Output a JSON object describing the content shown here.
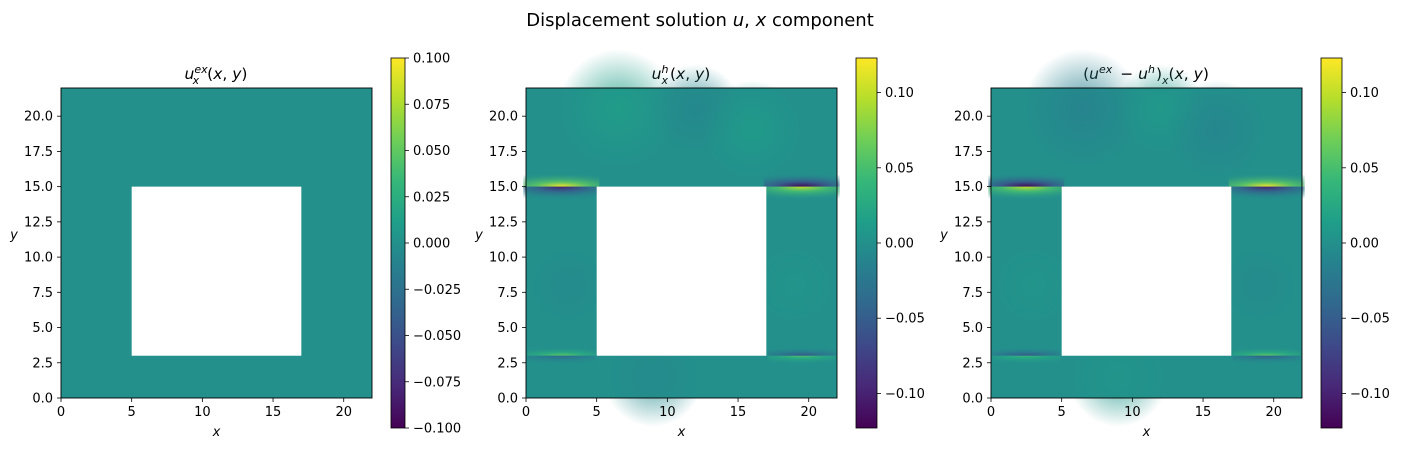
{
  "figure": {
    "suptitle": "Displacement solution u, x component"
  },
  "colors": {
    "viridis": [
      "#440154",
      "#482878",
      "#3e4989",
      "#31688e",
      "#26828e",
      "#1f9e89",
      "#35b779",
      "#6ece58",
      "#b5de2b",
      "#fde725"
    ]
  },
  "chart_data": [
    {
      "type": "heatmap",
      "title": "u_x^ex(x, y)",
      "xlabel": "x",
      "ylabel": "y",
      "xlim": [
        0,
        22
      ],
      "ylim": [
        0,
        22
      ],
      "xticks": [
        "0",
        "5",
        "10",
        "15",
        "20"
      ],
      "yticks": [
        "0.0",
        "2.5",
        "5.0",
        "7.5",
        "10.0",
        "12.5",
        "15.0",
        "17.5",
        "20.0"
      ],
      "domain_hole": {
        "x": [
          5,
          17
        ],
        "y": [
          3,
          15
        ]
      },
      "field_description_value": 0.0,
      "colorbar": {
        "range": [
          -0.1,
          0.1
        ],
        "ticks": [
          "0.100",
          "0.075",
          "0.050",
          "0.025",
          "0.000",
          "−0.025",
          "−0.050",
          "−0.075",
          "−0.100"
        ]
      }
    },
    {
      "type": "heatmap",
      "title": "u_x^h(x, y)",
      "xlabel": "x",
      "ylabel": "y",
      "xlim": [
        0,
        22
      ],
      "ylim": [
        0,
        22
      ],
      "xticks": [
        "0",
        "5",
        "10",
        "15",
        "20"
      ],
      "yticks": [
        "0.0",
        "2.5",
        "5.0",
        "7.5",
        "10.0",
        "12.5",
        "15.0",
        "17.5",
        "20.0"
      ],
      "domain_hole": {
        "x": [
          5,
          17
        ],
        "y": [
          3,
          15
        ]
      },
      "hotspots": [
        {
          "x": 2.5,
          "y": 15,
          "above": 0.12,
          "below": -0.1
        },
        {
          "x": 19.5,
          "y": 15,
          "above": -0.12,
          "below": 0.1
        },
        {
          "x": 2.5,
          "y": 3,
          "above": 0.06,
          "below": -0.04
        },
        {
          "x": 19.5,
          "y": 3,
          "above": -0.06,
          "below": 0.05
        }
      ],
      "colorbar": {
        "range": [
          -0.123,
          0.123
        ],
        "ticks": [
          "0.10",
          "0.05",
          "0.00",
          "−0.05",
          "−0.10"
        ]
      }
    },
    {
      "type": "heatmap",
      "title": "(u^ex − u^h)_x(x, y)",
      "xlabel": "x",
      "ylabel": "y",
      "xlim": [
        0,
        22
      ],
      "ylim": [
        0,
        22
      ],
      "xticks": [
        "0",
        "5",
        "10",
        "15",
        "20"
      ],
      "yticks": [
        "0.0",
        "2.5",
        "5.0",
        "7.5",
        "10.0",
        "12.5",
        "15.0",
        "17.5",
        "20.0"
      ],
      "domain_hole": {
        "x": [
          5,
          17
        ],
        "y": [
          3,
          15
        ]
      },
      "hotspots": [
        {
          "x": 2.5,
          "y": 15,
          "above": -0.12,
          "below": 0.1
        },
        {
          "x": 19.5,
          "y": 15,
          "above": 0.12,
          "below": -0.1
        },
        {
          "x": 2.5,
          "y": 3,
          "above": -0.06,
          "below": 0.04
        },
        {
          "x": 19.5,
          "y": 3,
          "above": 0.06,
          "below": -0.05
        }
      ],
      "colorbar": {
        "range": [
          -0.123,
          0.123
        ],
        "ticks": [
          "0.10",
          "0.05",
          "0.00",
          "−0.05",
          "−0.10"
        ]
      }
    }
  ]
}
